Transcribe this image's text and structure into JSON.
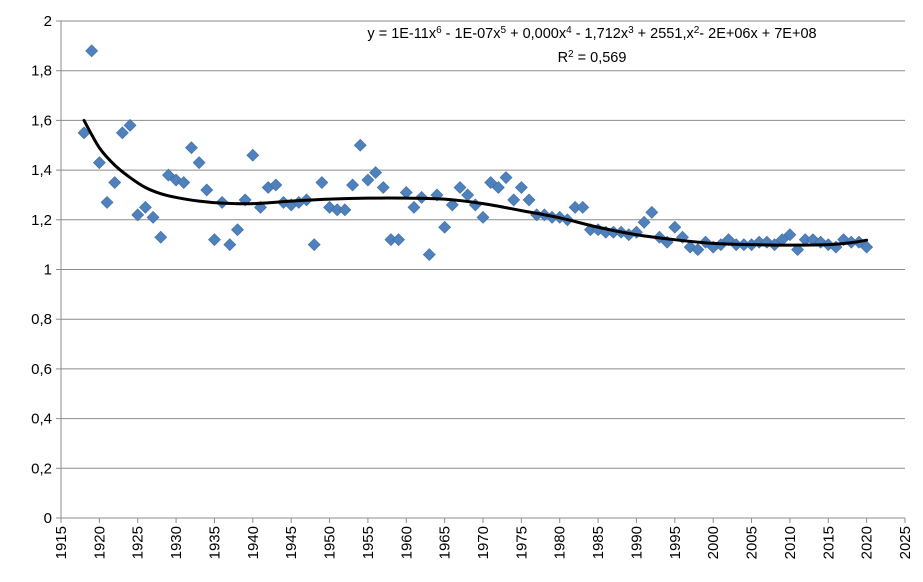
{
  "chart_data": {
    "type": "scatter",
    "title": "",
    "xlabel": "",
    "ylabel": "",
    "xlim": [
      1915,
      2025
    ],
    "ylim": [
      0,
      2
    ],
    "x_ticks": [
      "1915",
      "1920",
      "1925",
      "1930",
      "1935",
      "1940",
      "1945",
      "1950",
      "1955",
      "1960",
      "1965",
      "1970",
      "1975",
      "1980",
      "1985",
      "1990",
      "1995",
      "2000",
      "2005",
      "2010",
      "2015",
      "2020",
      "2025"
    ],
    "y_ticks": [
      "0",
      "0,2",
      "0,4",
      "0,6",
      "0,8",
      "1",
      "1,2",
      "1,4",
      "1,6",
      "1,8",
      "2"
    ],
    "grid": "horizontal",
    "legend": "none",
    "marker_color": "#4F81BD",
    "trend_color": "#000000",
    "trendline": {
      "type": "polynomial",
      "order": 6,
      "equation_parts": [
        "y = 1E-11x",
        "6",
        " - 1E-07x",
        "5",
        " + 0,000x",
        "4",
        " - 1,712x",
        "3",
        " + 2551,x",
        "2",
        "- 2E+06x + 7E+08"
      ],
      "r2_parts": [
        "R",
        "2",
        " = 0,569"
      ],
      "points": [
        [
          1918,
          1.6
        ],
        [
          1920,
          1.49
        ],
        [
          1922,
          1.42
        ],
        [
          1924,
          1.37
        ],
        [
          1926,
          1.33
        ],
        [
          1928,
          1.305
        ],
        [
          1930,
          1.29
        ],
        [
          1933,
          1.275
        ],
        [
          1936,
          1.267
        ],
        [
          1940,
          1.265
        ],
        [
          1945,
          1.275
        ],
        [
          1950,
          1.283
        ],
        [
          1955,
          1.287
        ],
        [
          1960,
          1.287
        ],
        [
          1965,
          1.283
        ],
        [
          1970,
          1.265
        ],
        [
          1975,
          1.237
        ],
        [
          1980,
          1.208
        ],
        [
          1985,
          1.17
        ],
        [
          1990,
          1.14
        ],
        [
          1995,
          1.12
        ],
        [
          2000,
          1.105
        ],
        [
          2005,
          1.1
        ],
        [
          2010,
          1.098
        ],
        [
          2015,
          1.1
        ],
        [
          2018,
          1.108
        ],
        [
          2020,
          1.118
        ]
      ]
    },
    "series": [
      {
        "x": [
          1918,
          1919,
          1920,
          1921,
          1922,
          1923,
          1924,
          1925,
          1926,
          1927,
          1928,
          1929,
          1930,
          1931,
          1932,
          1933,
          1934,
          1935,
          1936,
          1937,
          1938,
          1939,
          1940,
          1941,
          1942,
          1943,
          1944,
          1945,
          1946,
          1947,
          1948,
          1949,
          1950,
          1951,
          1952,
          1953,
          1954,
          1955,
          1956,
          1957,
          1958,
          1959,
          1960,
          1961,
          1962,
          1963,
          1964,
          1965,
          1966,
          1967,
          1968,
          1969,
          1970,
          1971,
          1972,
          1973,
          1974,
          1975,
          1976,
          1977,
          1978,
          1979,
          1980,
          1981,
          1982,
          1983,
          1984,
          1985,
          1986,
          1987,
          1988,
          1989,
          1990,
          1991,
          1992,
          1993,
          1994,
          1995,
          1996,
          1997,
          1998,
          1999,
          2000,
          2001,
          2002,
          2003,
          2004,
          2005,
          2006,
          2007,
          2008,
          2009,
          2010,
          2011,
          2012,
          2013,
          2014,
          2015,
          2016,
          2017,
          2018,
          2019,
          2020
        ],
        "y": [
          1.55,
          1.88,
          1.43,
          1.27,
          1.35,
          1.55,
          1.58,
          1.22,
          1.25,
          1.21,
          1.13,
          1.38,
          1.36,
          1.35,
          1.49,
          1.43,
          1.32,
          1.12,
          1.27,
          1.1,
          1.16,
          1.28,
          1.46,
          1.25,
          1.33,
          1.34,
          1.27,
          1.26,
          1.27,
          1.28,
          1.1,
          1.35,
          1.25,
          1.24,
          1.24,
          1.34,
          1.5,
          1.36,
          1.39,
          1.33,
          1.12,
          1.12,
          1.31,
          1.25,
          1.29,
          1.06,
          1.3,
          1.17,
          1.26,
          1.33,
          1.3,
          1.26,
          1.21,
          1.35,
          1.33,
          1.37,
          1.28,
          1.33,
          1.28,
          1.22,
          1.22,
          1.21,
          1.21,
          1.2,
          1.25,
          1.25,
          1.16,
          1.16,
          1.15,
          1.15,
          1.15,
          1.14,
          1.15,
          1.19,
          1.23,
          1.13,
          1.11,
          1.17,
          1.13,
          1.09,
          1.08,
          1.11,
          1.09,
          1.1,
          1.12,
          1.1,
          1.1,
          1.1,
          1.11,
          1.11,
          1.1,
          1.12,
          1.14,
          1.08,
          1.12,
          1.12,
          1.11,
          1.1,
          1.09,
          1.12,
          1.11,
          1.11,
          1.09
        ]
      }
    ]
  }
}
